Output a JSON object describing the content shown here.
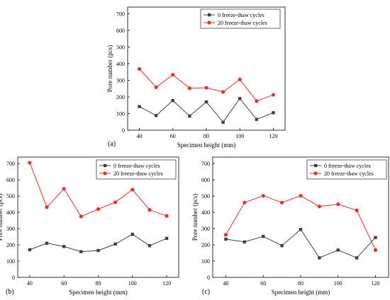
{
  "chart_data": [
    {
      "type": "line",
      "panel_label": "(a)",
      "title": "",
      "xlabel": "Specimen height (mm)",
      "ylabel": "Pore number (pcs)",
      "xlim": [
        33,
        127
      ],
      "ylim": [
        0,
        740
      ],
      "x_ticks": [
        40,
        60,
        80,
        100,
        120
      ],
      "y_ticks": [
        0,
        100,
        200,
        300,
        400,
        500,
        600,
        700
      ],
      "x": [
        40,
        50,
        60,
        70,
        80,
        90,
        100,
        110,
        120
      ],
      "series": [
        {
          "name": "0 freeze-thaw cycles",
          "color": "#404040",
          "marker": "square",
          "values": [
            142,
            88,
            178,
            85,
            170,
            48,
            190,
            65,
            105
          ]
        },
        {
          "name": "20 freeze-thaw cycles",
          "color": "#e8302f",
          "marker": "circle",
          "values": [
            368,
            258,
            333,
            252,
            255,
            230,
            305,
            175,
            213
          ]
        }
      ],
      "legend": "top-right",
      "grid": false
    },
    {
      "type": "line",
      "panel_label": "(b)",
      "title": "",
      "xlabel": "Specimen height (mm)",
      "ylabel": "Pore number (pcs)",
      "xlim": [
        33,
        127
      ],
      "ylim": [
        0,
        740
      ],
      "x_ticks": [
        40,
        60,
        80,
        100,
        120
      ],
      "y_ticks": [
        0,
        100,
        200,
        300,
        400,
        500,
        600,
        700
      ],
      "x": [
        40,
        50,
        60,
        70,
        80,
        90,
        100,
        110,
        120
      ],
      "series": [
        {
          "name": "0 freeze-thaw cycles",
          "color": "#404040",
          "marker": "square",
          "values": [
            170,
            210,
            190,
            158,
            165,
            205,
            265,
            195,
            240
          ]
        },
        {
          "name": "20 freeze-thaw cycles",
          "color": "#e8302f",
          "marker": "circle",
          "values": [
            705,
            432,
            545,
            375,
            420,
            462,
            540,
            415,
            378
          ]
        }
      ],
      "legend": "top-right",
      "grid": false
    },
    {
      "type": "line",
      "panel_label": "(c)",
      "title": "",
      "xlabel": "Specimen height (mm)",
      "ylabel": "Pore number (pcs)",
      "xlim": [
        33,
        127
      ],
      "ylim": [
        0,
        740
      ],
      "x_ticks": [
        40,
        60,
        80,
        100,
        120
      ],
      "y_ticks": [
        0,
        100,
        200,
        300,
        400,
        500,
        600,
        700
      ],
      "x": [
        40,
        50,
        60,
        70,
        80,
        90,
        100,
        110,
        120
      ],
      "series": [
        {
          "name": "0 freeze-thaw cycles",
          "color": "#404040",
          "marker": "square",
          "values": [
            235,
            218,
            252,
            195,
            295,
            120,
            168,
            120,
            245
          ]
        },
        {
          "name": "20 freeze-thaw cycles",
          "color": "#e8302f",
          "marker": "circle",
          "values": [
            262,
            460,
            502,
            460,
            502,
            436,
            450,
            412,
            168
          ]
        }
      ],
      "legend": "top-right",
      "grid": false
    }
  ]
}
